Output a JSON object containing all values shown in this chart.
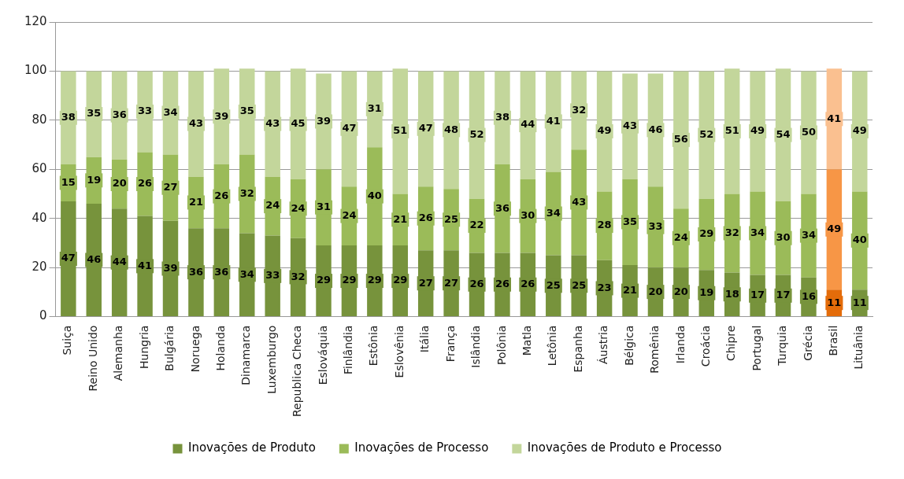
{
  "chart_data": {
    "type": "bar",
    "stacked": true,
    "categories": [
      "Suiça",
      "Reino Unido",
      "Alemanha",
      "Hungria",
      "Bulgária",
      "Noruega",
      "Holanda",
      "Dinamarca",
      "Luxemburgo",
      "Republica Checa",
      "Eslováquia",
      "Finlândia",
      "Estônia",
      "Eslovênia",
      "Itália",
      "França",
      "Islândia",
      "Polônia",
      "Matla",
      "Letônia",
      "Espanha",
      "Áustria",
      "Bélgica",
      "Romênia",
      "Irlanda",
      "Croácia",
      "Chipre",
      "Portugal",
      "Turquia",
      "Grécia",
      "Brasil",
      "Lituânia"
    ],
    "series": [
      {
        "name": "Inovações de Produto",
        "color": "#77933c",
        "colors": [
          "#77933c",
          "#77933c",
          "#77933c",
          "#77933c",
          "#77933c",
          "#77933c",
          "#77933c",
          "#77933c",
          "#77933c",
          "#77933c",
          "#77933c",
          "#77933c",
          "#77933c",
          "#77933c",
          "#77933c",
          "#77933c",
          "#77933c",
          "#77933c",
          "#77933c",
          "#77933c",
          "#77933c",
          "#77933c",
          "#77933c",
          "#77933c",
          "#77933c",
          "#77933c",
          "#77933c",
          "#77933c",
          "#77933c",
          "#77933c",
          "#e46c0a",
          "#77933c"
        ],
        "values": [
          47,
          46,
          44,
          41,
          39,
          36,
          36,
          34,
          33,
          32,
          29,
          29,
          29,
          29,
          27,
          27,
          26,
          26,
          26,
          25,
          25,
          23,
          21,
          20,
          20,
          19,
          18,
          17,
          17,
          16,
          11,
          11
        ]
      },
      {
        "name": "Inovações de Processo",
        "color": "#9bbb59",
        "colors": [
          "#9bbb59",
          "#9bbb59",
          "#9bbb59",
          "#9bbb59",
          "#9bbb59",
          "#9bbb59",
          "#9bbb59",
          "#9bbb59",
          "#9bbb59",
          "#9bbb59",
          "#9bbb59",
          "#9bbb59",
          "#9bbb59",
          "#9bbb59",
          "#9bbb59",
          "#9bbb59",
          "#9bbb59",
          "#9bbb59",
          "#9bbb59",
          "#9bbb59",
          "#9bbb59",
          "#9bbb59",
          "#9bbb59",
          "#9bbb59",
          "#9bbb59",
          "#9bbb59",
          "#9bbb59",
          "#9bbb59",
          "#9bbb59",
          "#9bbb59",
          "#f79646",
          "#9bbb59"
        ],
        "values": [
          15,
          19,
          20,
          26,
          27,
          21,
          26,
          32,
          24,
          24,
          31,
          24,
          40,
          21,
          26,
          25,
          22,
          36,
          30,
          34,
          43,
          28,
          35,
          33,
          24,
          29,
          32,
          34,
          30,
          34,
          49,
          40
        ]
      },
      {
        "name": "Inovações de Produto e Processo",
        "color": "#c3d69b",
        "colors": [
          "#c3d69b",
          "#c3d69b",
          "#c3d69b",
          "#c3d69b",
          "#c3d69b",
          "#c3d69b",
          "#c3d69b",
          "#c3d69b",
          "#c3d69b",
          "#c3d69b",
          "#c3d69b",
          "#c3d69b",
          "#c3d69b",
          "#c3d69b",
          "#c3d69b",
          "#c3d69b",
          "#c3d69b",
          "#c3d69b",
          "#c3d69b",
          "#c3d69b",
          "#c3d69b",
          "#c3d69b",
          "#c3d69b",
          "#c3d69b",
          "#c3d69b",
          "#c3d69b",
          "#c3d69b",
          "#c3d69b",
          "#c3d69b",
          "#c3d69b",
          "#fac090",
          "#c3d69b"
        ],
        "values": [
          38,
          35,
          36,
          33,
          34,
          43,
          39,
          35,
          43,
          45,
          39,
          47,
          31,
          51,
          47,
          48,
          52,
          38,
          44,
          41,
          32,
          49,
          43,
          46,
          56,
          52,
          51,
          49,
          54,
          50,
          41,
          49
        ]
      }
    ],
    "ylim": [
      0,
      120
    ],
    "yticks": [
      0,
      20,
      40,
      60,
      80,
      100,
      120
    ],
    "grid": "y",
    "legend": "bottom",
    "data_labels": true
  }
}
